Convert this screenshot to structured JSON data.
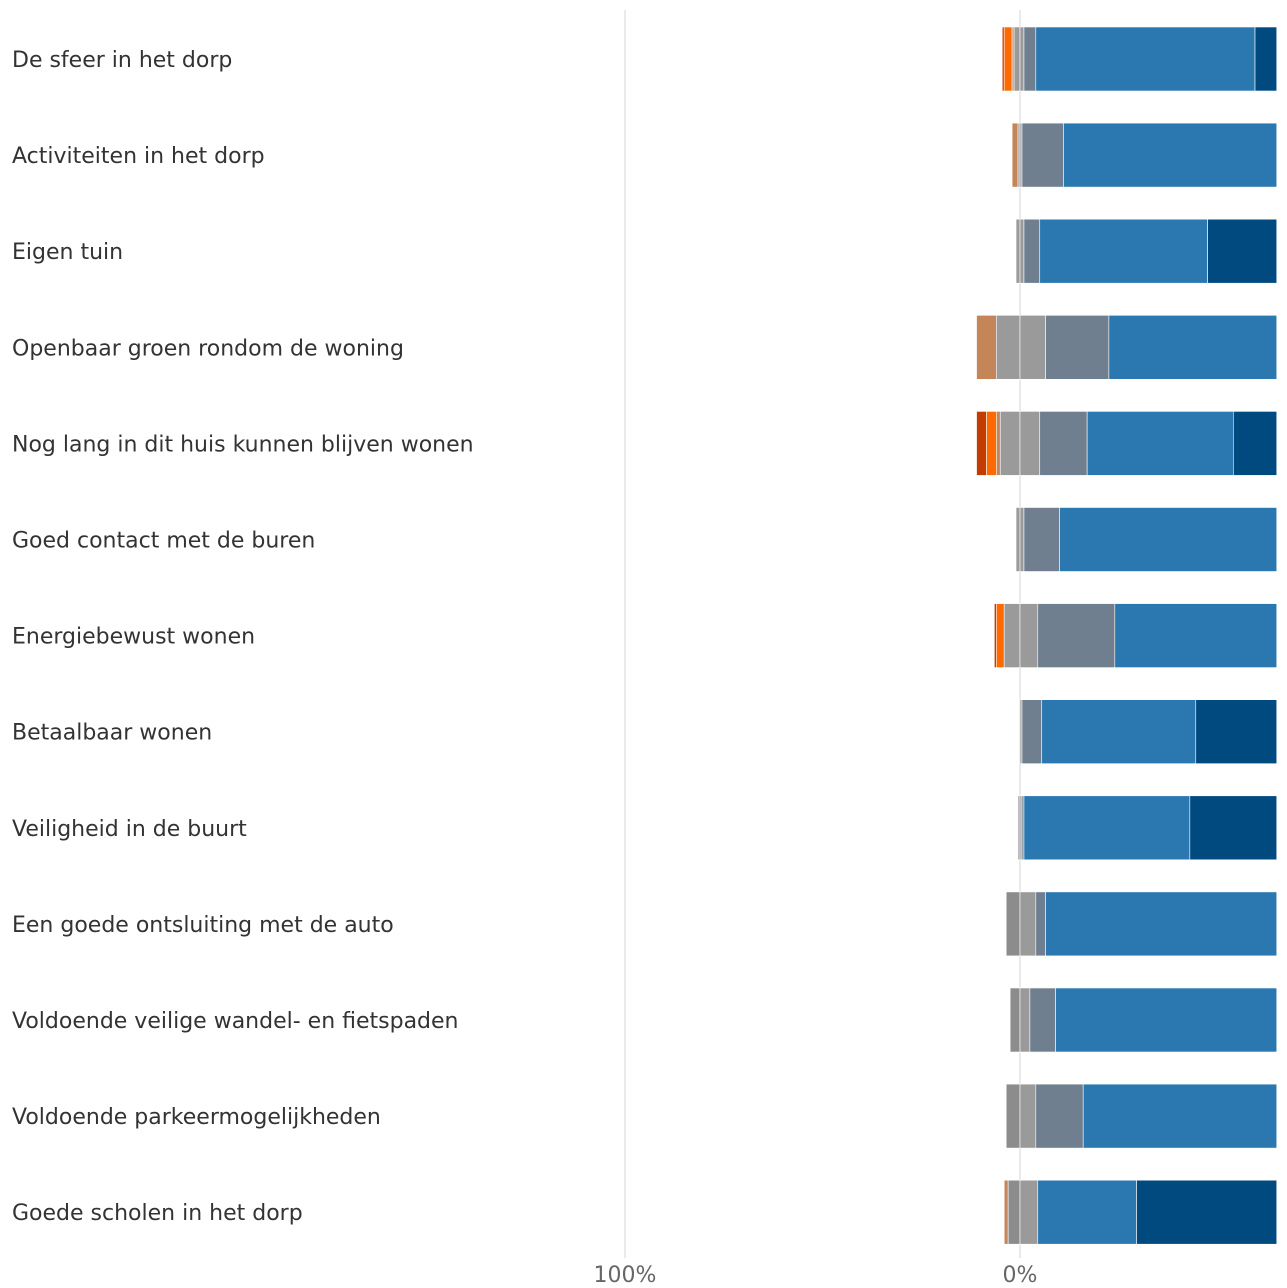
{
  "chart_data": {
    "type": "bar",
    "subtype": "diverging-stacked-horizontal",
    "categories": [
      "De sfeer in het dorp",
      "Activiteiten in het dorp",
      "Eigen tuin",
      "Openbaar groen rondom de woning",
      "Nog lang in dit huis kunnen blijven wonen",
      "Goed contact met de buren",
      "Energiebewust wonen",
      "Betaalbaar wonen",
      "Veiligheid in de buurt",
      "Een goede ontsluiting met de auto",
      "Voldoende veilige wandel- en fietspaden",
      "Voldoende parkeermogelijkheden",
      "Goede scholen in het dorp"
    ],
    "segment_colors": [
      "#c23b00",
      "#ff6a00",
      "#c48558",
      "#8c8c8c",
      "#9a9a9a",
      "#6f7f8f",
      "#2b78b0",
      "#004a80"
    ],
    "rows": [
      [
        [
          -4.5,
          -4.0,
          "#c23b00"
        ],
        [
          -4.0,
          -2.0,
          "#ff6a00"
        ],
        [
          -2.0,
          -1.5,
          "#c48558"
        ],
        [
          -1.5,
          0,
          "#9a9a9a"
        ],
        [
          0,
          1.0,
          "#9a9a9a"
        ],
        [
          1.0,
          4.0,
          "#6f7f8f"
        ],
        [
          4.0,
          59.5,
          "#2b78b0"
        ],
        [
          59.5,
          65,
          "#004a80"
        ]
      ],
      [
        [
          -2.0,
          -0.5,
          "#c48558"
        ],
        [
          -0.5,
          0,
          "#9a9a9a"
        ],
        [
          0,
          0.5,
          "#9a9a9a"
        ],
        [
          0.5,
          11.0,
          "#6f7f8f"
        ],
        [
          11.0,
          65,
          "#2b78b0"
        ]
      ],
      [
        [
          -1.0,
          0,
          "#9a9a9a"
        ],
        [
          0,
          1.0,
          "#9a9a9a"
        ],
        [
          1.0,
          5.0,
          "#6f7f8f"
        ],
        [
          5.0,
          47.5,
          "#2b78b0"
        ],
        [
          47.5,
          65,
          "#004a80"
        ]
      ],
      [
        [
          -11.0,
          -6.0,
          "#c48558"
        ],
        [
          -6.0,
          0,
          "#9a9a9a"
        ],
        [
          0,
          6.5,
          "#9a9a9a"
        ],
        [
          6.5,
          22.5,
          "#6f7f8f"
        ],
        [
          22.5,
          65,
          "#2b78b0"
        ]
      ],
      [
        [
          -11.0,
          -8.5,
          "#c23b00"
        ],
        [
          -8.5,
          -6.0,
          "#ff6a00"
        ],
        [
          -6.0,
          -5.0,
          "#c48558"
        ],
        [
          -5.0,
          0,
          "#9a9a9a"
        ],
        [
          0,
          5.0,
          "#9a9a9a"
        ],
        [
          5.0,
          17.0,
          "#6f7f8f"
        ],
        [
          17.0,
          54.0,
          "#2b78b0"
        ],
        [
          54.0,
          65,
          "#004a80"
        ]
      ],
      [
        [
          -1.0,
          0,
          "#9a9a9a"
        ],
        [
          0,
          1.0,
          "#9a9a9a"
        ],
        [
          1.0,
          10.0,
          "#6f7f8f"
        ],
        [
          10.0,
          65,
          "#2b78b0"
        ]
      ],
      [
        [
          -6.5,
          -6.0,
          "#c23b00"
        ],
        [
          -6.0,
          -4.0,
          "#ff6a00"
        ],
        [
          -4.0,
          0,
          "#9a9a9a"
        ],
        [
          0,
          4.5,
          "#9a9a9a"
        ],
        [
          4.5,
          24.0,
          "#6f7f8f"
        ],
        [
          24.0,
          65,
          "#2b78b0"
        ]
      ],
      [
        [
          0,
          0.5,
          "#9a9a9a"
        ],
        [
          0.5,
          5.5,
          "#6f7f8f"
        ],
        [
          5.5,
          44.5,
          "#2b78b0"
        ],
        [
          44.5,
          65,
          "#004a80"
        ]
      ],
      [
        [
          -0.5,
          0,
          "#9a9a9a"
        ],
        [
          0,
          0.5,
          "#9a9a9a"
        ],
        [
          0.5,
          1.0,
          "#6f7f8f"
        ],
        [
          1.0,
          43.0,
          "#2b78b0"
        ],
        [
          43.0,
          65,
          "#004a80"
        ]
      ],
      [
        [
          -3.5,
          0,
          "#8c8c8c"
        ],
        [
          0,
          4.0,
          "#9a9a9a"
        ],
        [
          4.0,
          6.5,
          "#6f7f8f"
        ],
        [
          6.5,
          65,
          "#2b78b0"
        ]
      ],
      [
        [
          -2.5,
          0,
          "#8c8c8c"
        ],
        [
          0,
          2.5,
          "#9a9a9a"
        ],
        [
          2.5,
          9.0,
          "#6f7f8f"
        ],
        [
          9.0,
          65,
          "#2b78b0"
        ]
      ],
      [
        [
          -3.5,
          0,
          "#8c8c8c"
        ],
        [
          0,
          4.0,
          "#9a9a9a"
        ],
        [
          4.0,
          16.0,
          "#6f7f8f"
        ],
        [
          16.0,
          65,
          "#2b78b0"
        ]
      ],
      [
        [
          -4.0,
          -3.0,
          "#c48558"
        ],
        [
          -3.0,
          0,
          "#8c8c8c"
        ],
        [
          0,
          4.5,
          "#9a9a9a"
        ],
        [
          4.5,
          29.5,
          "#2b78b0"
        ],
        [
          29.5,
          65,
          "#004a80"
        ]
      ]
    ],
    "x_ticks": [
      {
        "value": -100,
        "label": "100%"
      },
      {
        "value": 0,
        "label": "0%"
      }
    ],
    "xlim": [
      -100,
      65
    ],
    "grid": true
  }
}
